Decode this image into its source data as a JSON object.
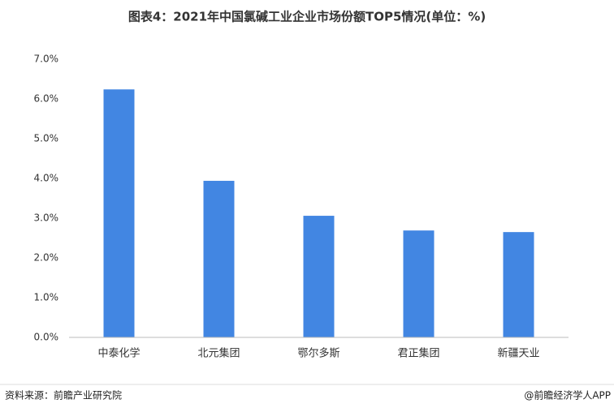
{
  "chart_data": {
    "type": "bar",
    "title": "图表4：2021年中国氯碱工业企业市场份额TOP5情况(单位：%)",
    "categories": [
      "中泰化学",
      "北元集团",
      "鄂尔多斯",
      "君正集团",
      "新疆天业"
    ],
    "values": [
      6.24,
      3.94,
      3.06,
      2.69,
      2.65
    ],
    "color": "#4286e2",
    "ylim": [
      0,
      7
    ],
    "yticks": [
      {
        "value": 0,
        "label": "0.0%"
      },
      {
        "value": 1,
        "label": "1.0%"
      },
      {
        "value": 2,
        "label": "2.0%"
      },
      {
        "value": 3,
        "label": "3.0%"
      },
      {
        "value": 4,
        "label": "4.0%"
      },
      {
        "value": 5,
        "label": "5.0%"
      },
      {
        "value": 6,
        "label": "6.0%"
      },
      {
        "value": 7,
        "label": "7.0%"
      }
    ],
    "grid": false,
    "source": "资料来源：前瞻产业研究院",
    "credit": "@前瞻经济学人APP"
  }
}
